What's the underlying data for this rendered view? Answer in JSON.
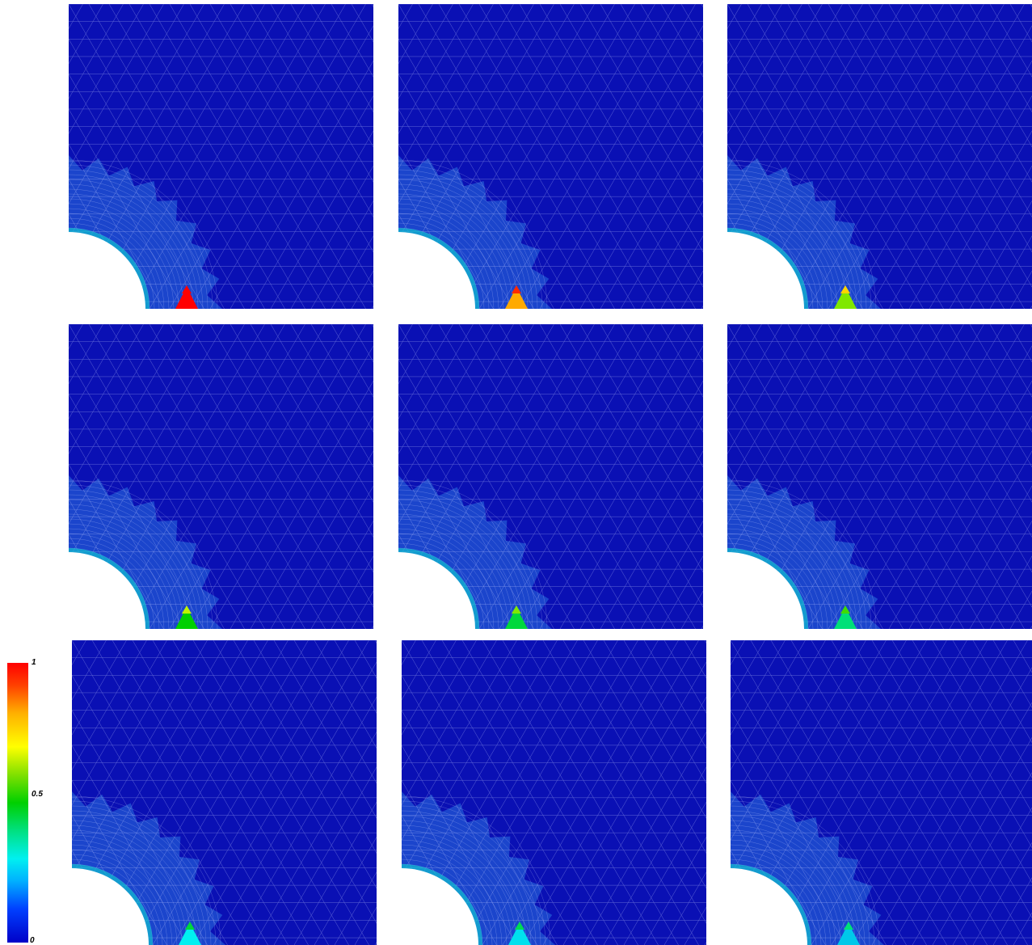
{
  "colorbar": {
    "max_label": "1",
    "mid_label": "0.5",
    "min_label": "0",
    "colors": [
      "#0000c8",
      "#00b0ff",
      "#00f0f0",
      "#00d000",
      "#ffff00",
      "#ff0000"
    ]
  },
  "panels": [
    {
      "hotspot_level": 1.0
    },
    {
      "hotspot_level": 0.8
    },
    {
      "hotspot_level": 0.6
    },
    {
      "hotspot_level": 0.5
    },
    {
      "hotspot_level": 0.45
    },
    {
      "hotspot_level": 0.4
    },
    {
      "hotspot_level": 0.3
    },
    {
      "hotspot_level": 0.28
    },
    {
      "hotspot_level": 0.25
    }
  ],
  "colors": {
    "background": "#0a10b4",
    "mesh_line": "#c8d0ff",
    "refined_zone": "#1e4fd0",
    "hole": "#ffffff"
  }
}
